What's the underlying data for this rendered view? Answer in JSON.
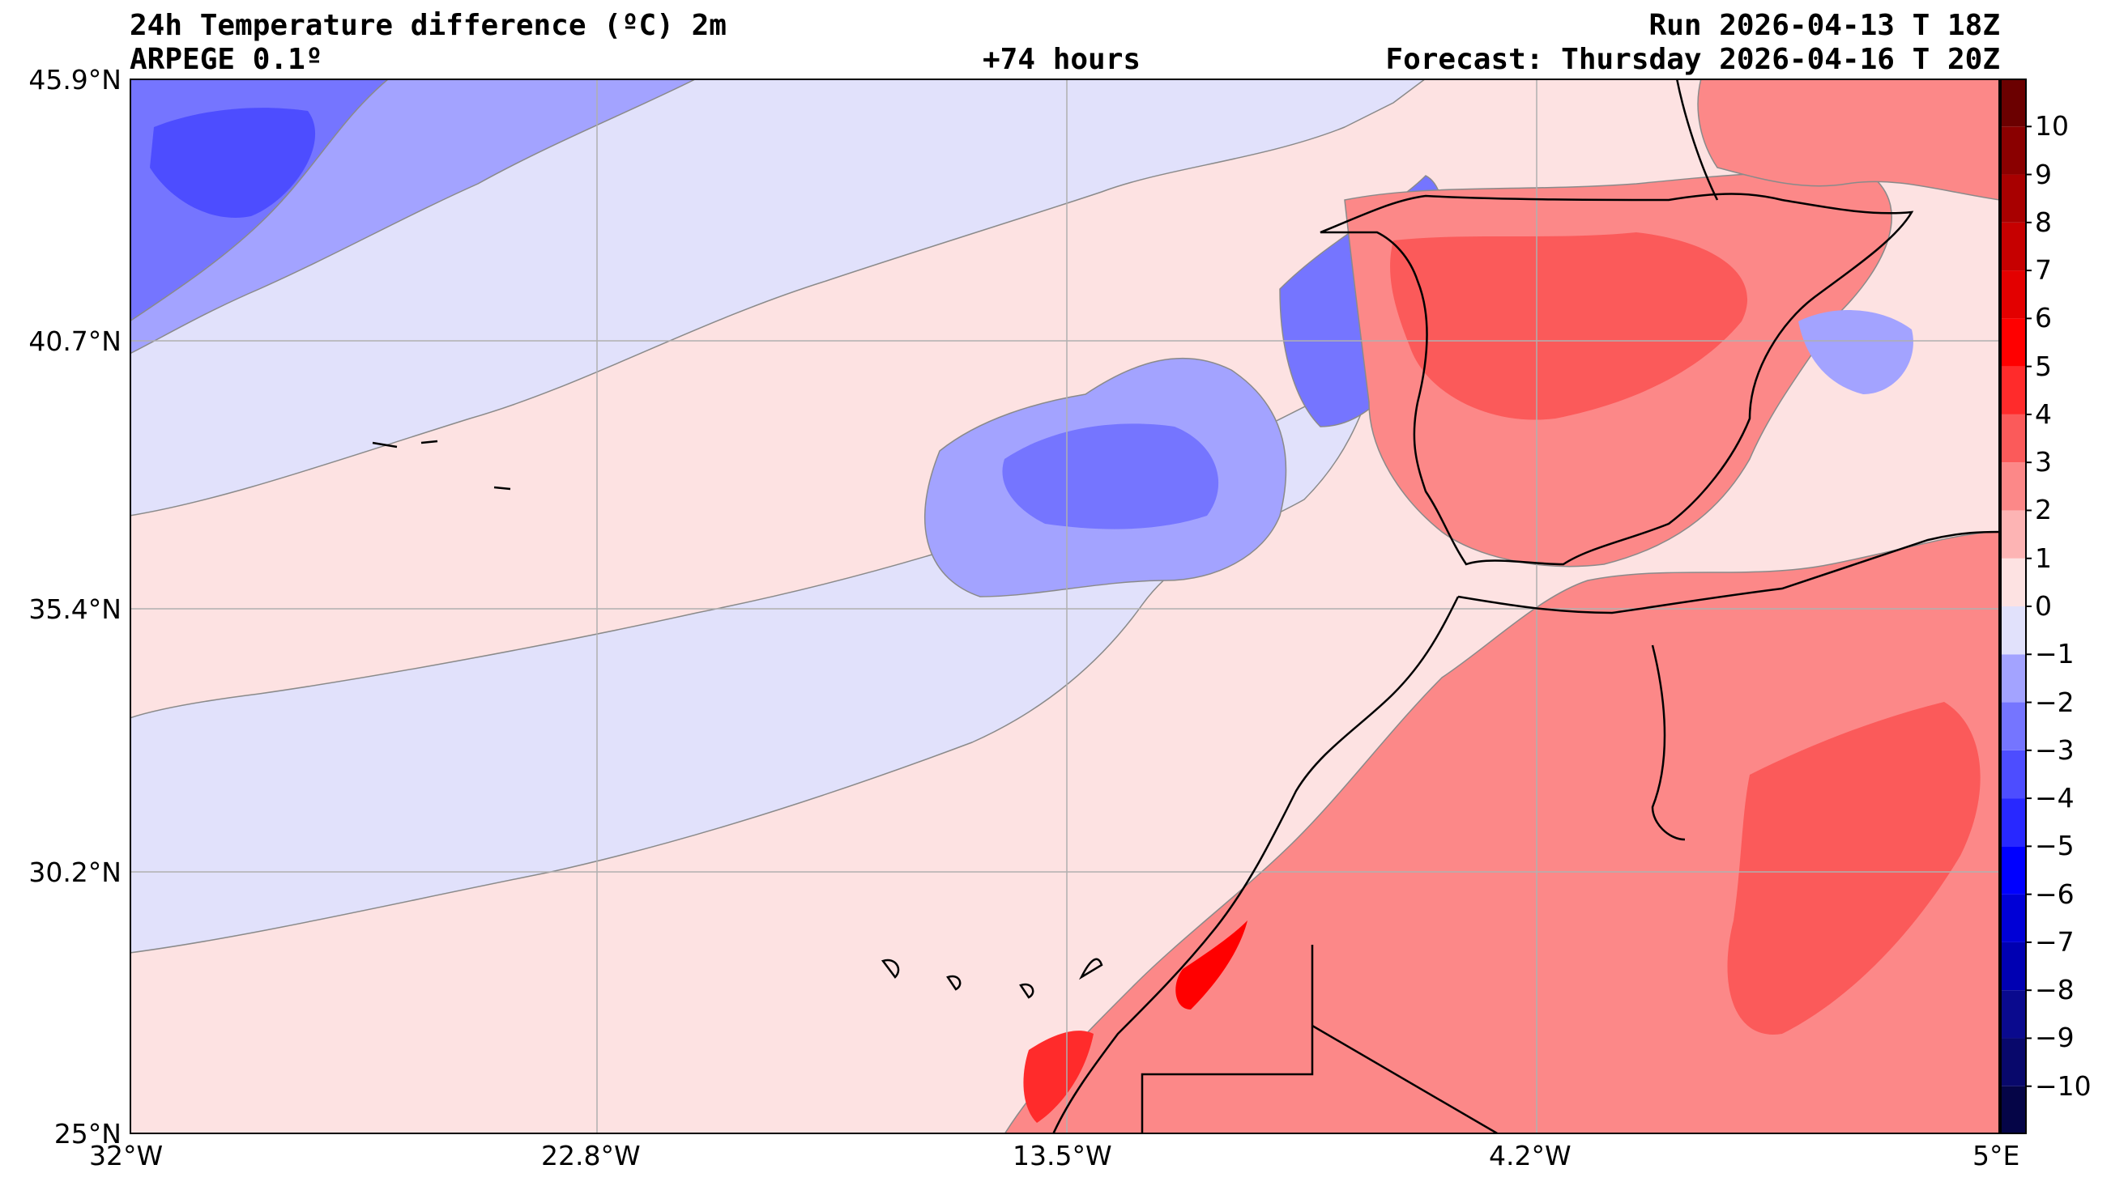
{
  "header": {
    "title": "24h Temperature difference (ºC) 2m",
    "model": "ARPEGE 0.1º",
    "lead": "+74 hours",
    "run": "Run 2026-04-13 T 18Z",
    "forecast": "Forecast: Thursday 2026-04-16 T 20Z"
  },
  "axes": {
    "lat_labels": [
      "45.9°N",
      "40.7°N",
      "35.4°N",
      "30.2°N",
      "25°N"
    ],
    "lon_labels": [
      "32°W",
      "22.8°W",
      "13.5°W",
      "4.2°W",
      "5°E"
    ],
    "lat_values": [
      45.9,
      40.7,
      35.4,
      30.2,
      25.0
    ],
    "lon_values": [
      -32,
      -22.8,
      -13.5,
      -4.2,
      5
    ],
    "lat_range": [
      25.0,
      45.9
    ],
    "lon_range": [
      -32,
      5
    ]
  },
  "colorbar": {
    "ticks": [
      "10",
      "9",
      "8",
      "7",
      "6",
      "5",
      "4",
      "3",
      "2",
      "1",
      "0",
      "−1",
      "−2",
      "−3",
      "−4",
      "−5",
      "−6",
      "−7",
      "−8",
      "−9",
      "−10"
    ],
    "range": [
      -11,
      11
    ],
    "levels": [
      -11,
      -10,
      -9,
      -8,
      -7,
      -6,
      -5,
      -4,
      -3,
      -2,
      -1,
      0,
      1,
      2,
      3,
      4,
      5,
      6,
      7,
      8,
      9,
      10,
      11
    ],
    "colors": [
      "#050547",
      "#08086b",
      "#0a0a8e",
      "#0000b2",
      "#0000d6",
      "#0000ff",
      "#2828ff",
      "#4d4dff",
      "#7575ff",
      "#a3a3ff",
      "#e1e1fb",
      "#fde2e2",
      "#fdb4b4",
      "#fc8888",
      "#fb5a5a",
      "#ff2b2b",
      "#ff0000",
      "#e30000",
      "#c60000",
      "#a80000",
      "#8a0000",
      "#6b0000"
    ]
  },
  "colors": {
    "grid": "#b0b0b0",
    "coast": "#000000",
    "contour": "#8a8a8a"
  }
}
